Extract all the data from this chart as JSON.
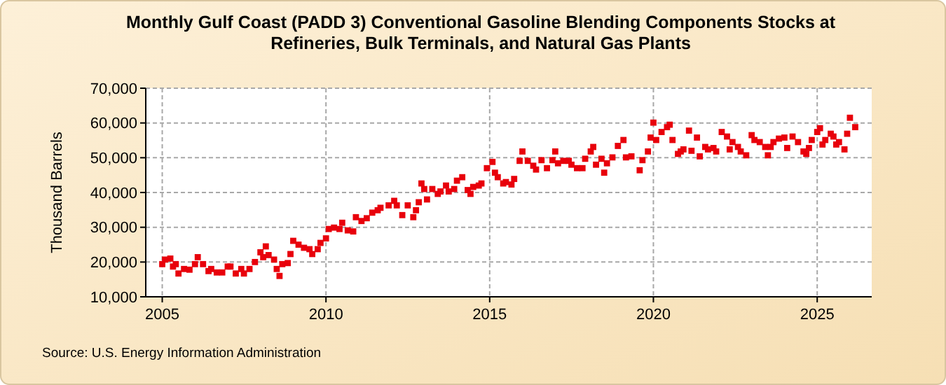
{
  "chart_data": {
    "type": "scatter",
    "title": "Monthly Gulf Coast (PADD 3) Conventional Gasoline Blending Components Stocks at Refineries, Bulk Terminals, and Natural Gas Plants",
    "ylabel": "Thousand Barrels",
    "annotations": [
      "Source: U.S. Energy Information Administration"
    ],
    "marker": "square",
    "grid": true,
    "xlim": [
      "2004-07",
      "2026-09"
    ],
    "xticks": [
      {
        "value": "2005",
        "label": "2005"
      },
      {
        "value": "2010",
        "label": "2010"
      },
      {
        "value": "2015",
        "label": "2015"
      },
      {
        "value": "2020",
        "label": "2020"
      },
      {
        "value": "2025",
        "label": "2025"
      }
    ],
    "ylim": [
      10000,
      70000
    ],
    "yticks": [
      {
        "value": 10000,
        "label": "10,000"
      },
      {
        "value": 20000,
        "label": "20,000"
      },
      {
        "value": 30000,
        "label": "30,000"
      },
      {
        "value": 40000,
        "label": "40,000"
      },
      {
        "value": 50000,
        "label": "50,000"
      },
      {
        "value": 60000,
        "label": "60,000"
      },
      {
        "value": 70000,
        "label": "70,000"
      }
    ],
    "series": [
      {
        "color": "#e8000b",
        "x": [
          "2005-01",
          "2005-02",
          "2005-04",
          "2005-05",
          "2005-06",
          "2005-07",
          "2005-09",
          "2005-11",
          "2006-01",
          "2006-02",
          "2006-04",
          "2006-06",
          "2006-07",
          "2006-09",
          "2006-11",
          "2007-01",
          "2007-02",
          "2007-04",
          "2007-06",
          "2007-07",
          "2007-09",
          "2007-11",
          "2008-01",
          "2008-02",
          "2008-03",
          "2008-04",
          "2008-06",
          "2008-07",
          "2008-08",
          "2008-09",
          "2008-11",
          "2008-12",
          "2009-01",
          "2009-03",
          "2009-05",
          "2009-07",
          "2009-08",
          "2009-10",
          "2009-11",
          "2010-01",
          "2010-02",
          "2010-04",
          "2010-06",
          "2010-07",
          "2010-09",
          "2010-11",
          "2010-12",
          "2011-02",
          "2011-04",
          "2011-06",
          "2011-08",
          "2011-09",
          "2011-12",
          "2012-02",
          "2012-03",
          "2012-05",
          "2012-07",
          "2012-09",
          "2012-10",
          "2012-11",
          "2012-12",
          "2013-01",
          "2013-02",
          "2013-04",
          "2013-06",
          "2013-07",
          "2013-09",
          "2013-10",
          "2013-12",
          "2014-01",
          "2014-03",
          "2014-05",
          "2014-06",
          "2014-07",
          "2014-09",
          "2014-10",
          "2014-12",
          "2015-02",
          "2015-03",
          "2015-04",
          "2015-06",
          "2015-07",
          "2015-09",
          "2015-10",
          "2015-12",
          "2016-01",
          "2016-03",
          "2016-05",
          "2016-06",
          "2016-08",
          "2016-10",
          "2016-12",
          "2017-01",
          "2017-02",
          "2017-04",
          "2017-06",
          "2017-07",
          "2017-09",
          "2017-11",
          "2017-12",
          "2018-02",
          "2018-03",
          "2018-04",
          "2018-06",
          "2018-07",
          "2018-08",
          "2018-10",
          "2018-12",
          "2019-02",
          "2019-03",
          "2019-05",
          "2019-08",
          "2019-09",
          "2019-11",
          "2019-12",
          "2020-01",
          "2020-02",
          "2020-04",
          "2020-06",
          "2020-07",
          "2020-08",
          "2020-10",
          "2020-11",
          "2020-12",
          "2021-02",
          "2021-03",
          "2021-05",
          "2021-06",
          "2021-08",
          "2021-09",
          "2021-11",
          "2021-12",
          "2022-02",
          "2022-04",
          "2022-05",
          "2022-06",
          "2022-08",
          "2022-09",
          "2022-11",
          "2023-01",
          "2023-02",
          "2023-04",
          "2023-06",
          "2023-07",
          "2023-08",
          "2023-09",
          "2023-11",
          "2024-01",
          "2024-02",
          "2024-04",
          "2024-06",
          "2024-08",
          "2024-09",
          "2024-10",
          "2024-11",
          "2025-01",
          "2025-02",
          "2025-03",
          "2025-04",
          "2025-06",
          "2025-07",
          "2025-08",
          "2025-09",
          "2025-11",
          "2025-12",
          "2026-01",
          "2026-03"
        ],
        "values": [
          19400,
          20700,
          21000,
          18700,
          19400,
          16700,
          18000,
          17800,
          19400,
          21400,
          19400,
          17400,
          18000,
          17000,
          17000,
          18700,
          18700,
          16700,
          18000,
          16700,
          18000,
          20000,
          22800,
          21400,
          24500,
          22000,
          20700,
          18000,
          16000,
          19400,
          19700,
          22300,
          26100,
          25000,
          24100,
          23700,
          22300,
          23700,
          25500,
          26800,
          29500,
          29900,
          29500,
          31300,
          29100,
          28800,
          32900,
          31800,
          32600,
          34200,
          34900,
          35600,
          36300,
          37600,
          36300,
          33500,
          36300,
          32900,
          34900,
          37200,
          42600,
          41000,
          38000,
          41000,
          39600,
          40300,
          42000,
          40300,
          41000,
          43400,
          44400,
          40700,
          39600,
          41600,
          42000,
          42600,
          47000,
          48800,
          45700,
          44400,
          42600,
          43000,
          42300,
          43900,
          49100,
          51800,
          49100,
          47700,
          46600,
          49300,
          47000,
          49300,
          51800,
          48400,
          49100,
          49100,
          48000,
          47000,
          47000,
          49700,
          51800,
          53100,
          48000,
          49700,
          45700,
          48400,
          50100,
          53400,
          55100,
          50100,
          50400,
          46400,
          49300,
          51800,
          55800,
          60100,
          55100,
          57400,
          58800,
          59500,
          55100,
          51100,
          51800,
          52400,
          57800,
          52000,
          55800,
          50400,
          53100,
          52400,
          52800,
          51800,
          57400,
          56100,
          52400,
          54500,
          53100,
          51800,
          50700,
          56500,
          55100,
          54500,
          53100,
          50700,
          53100,
          54500,
          55500,
          55800,
          52800,
          56100,
          54500,
          51800,
          51100,
          52800,
          55100,
          57400,
          58500,
          53800,
          55100,
          56900,
          56100,
          53800,
          54500,
          52400,
          56900,
          61500,
          58800
        ]
      }
    ]
  }
}
